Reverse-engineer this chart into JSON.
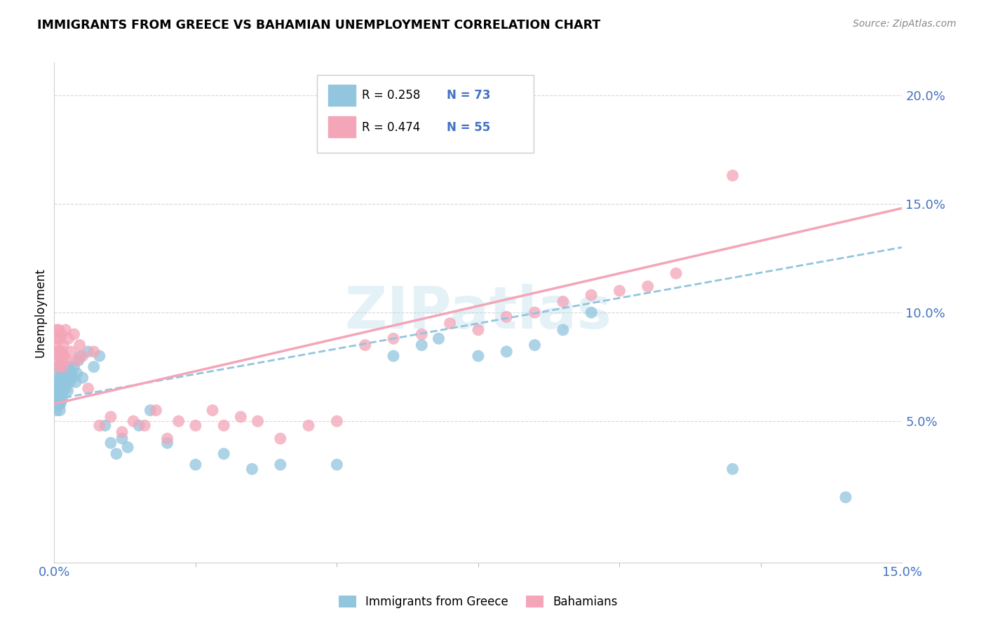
{
  "title": "IMMIGRANTS FROM GREECE VS BAHAMIAN UNEMPLOYMENT CORRELATION CHART",
  "source": "Source: ZipAtlas.com",
  "ylabel": "Unemployment",
  "ylabel_right_ticks": [
    "5.0%",
    "10.0%",
    "15.0%",
    "20.0%"
  ],
  "ylabel_right_vals": [
    0.05,
    0.1,
    0.15,
    0.2
  ],
  "xlim": [
    0.0,
    0.15
  ],
  "ylim": [
    -0.015,
    0.215
  ],
  "legend_label1_bottom": "Immigrants from Greece",
  "legend_label2_bottom": "Bahamians",
  "color_blue": "#92c5de",
  "color_pink": "#f4a5b8",
  "watermark": "ZIPatlas",
  "blue_scatter_x": [
    0.0002,
    0.0003,
    0.0004,
    0.0005,
    0.0006,
    0.0006,
    0.0007,
    0.0007,
    0.0008,
    0.0008,
    0.0008,
    0.0009,
    0.0009,
    0.001,
    0.001,
    0.001,
    0.0011,
    0.0011,
    0.0012,
    0.0012,
    0.0013,
    0.0013,
    0.0014,
    0.0014,
    0.0015,
    0.0015,
    0.0016,
    0.0017,
    0.0018,
    0.0019,
    0.002,
    0.0021,
    0.0022,
    0.0023,
    0.0024,
    0.0025,
    0.0026,
    0.0027,
    0.0028,
    0.003,
    0.0032,
    0.0035,
    0.0038,
    0.004,
    0.0043,
    0.0046,
    0.005,
    0.006,
    0.007,
    0.008,
    0.009,
    0.01,
    0.011,
    0.012,
    0.013,
    0.015,
    0.017,
    0.02,
    0.025,
    0.03,
    0.035,
    0.04,
    0.05,
    0.06,
    0.065,
    0.068,
    0.075,
    0.08,
    0.085,
    0.09,
    0.095,
    0.12,
    0.14
  ],
  "blue_scatter_y": [
    0.065,
    0.062,
    0.055,
    0.06,
    0.058,
    0.068,
    0.063,
    0.072,
    0.06,
    0.067,
    0.075,
    0.058,
    0.064,
    0.055,
    0.062,
    0.07,
    0.058,
    0.065,
    0.06,
    0.068,
    0.065,
    0.072,
    0.06,
    0.068,
    0.063,
    0.07,
    0.066,
    0.068,
    0.072,
    0.07,
    0.065,
    0.07,
    0.068,
    0.075,
    0.064,
    0.072,
    0.07,
    0.075,
    0.068,
    0.072,
    0.07,
    0.075,
    0.068,
    0.072,
    0.078,
    0.08,
    0.07,
    0.082,
    0.075,
    0.08,
    0.048,
    0.04,
    0.035,
    0.042,
    0.038,
    0.048,
    0.055,
    0.04,
    0.03,
    0.035,
    0.028,
    0.03,
    0.03,
    0.08,
    0.085,
    0.088,
    0.08,
    0.082,
    0.085,
    0.092,
    0.1,
    0.028,
    0.015
  ],
  "pink_scatter_x": [
    0.0002,
    0.0003,
    0.0004,
    0.0005,
    0.0006,
    0.0007,
    0.0008,
    0.0009,
    0.001,
    0.0011,
    0.0012,
    0.0013,
    0.0014,
    0.0015,
    0.0016,
    0.0018,
    0.002,
    0.0022,
    0.0025,
    0.003,
    0.0035,
    0.004,
    0.0045,
    0.005,
    0.006,
    0.007,
    0.008,
    0.01,
    0.012,
    0.014,
    0.016,
    0.018,
    0.02,
    0.022,
    0.025,
    0.028,
    0.03,
    0.033,
    0.036,
    0.04,
    0.045,
    0.05,
    0.055,
    0.06,
    0.065,
    0.07,
    0.075,
    0.08,
    0.085,
    0.09,
    0.095,
    0.1,
    0.105,
    0.11,
    0.12
  ],
  "pink_scatter_y": [
    0.085,
    0.082,
    0.092,
    0.078,
    0.088,
    0.075,
    0.092,
    0.082,
    0.08,
    0.088,
    0.078,
    0.09,
    0.082,
    0.075,
    0.085,
    0.08,
    0.092,
    0.078,
    0.088,
    0.082,
    0.09,
    0.078,
    0.085,
    0.08,
    0.065,
    0.082,
    0.048,
    0.052,
    0.045,
    0.05,
    0.048,
    0.055,
    0.042,
    0.05,
    0.048,
    0.055,
    0.048,
    0.052,
    0.05,
    0.042,
    0.048,
    0.05,
    0.085,
    0.088,
    0.09,
    0.095,
    0.092,
    0.098,
    0.1,
    0.105,
    0.108,
    0.11,
    0.112,
    0.118,
    0.163
  ],
  "blue_line_x": [
    0.0,
    0.15
  ],
  "blue_line_y": [
    0.06,
    0.13
  ],
  "pink_line_x": [
    0.0,
    0.15
  ],
  "pink_line_y": [
    0.058,
    0.148
  ]
}
